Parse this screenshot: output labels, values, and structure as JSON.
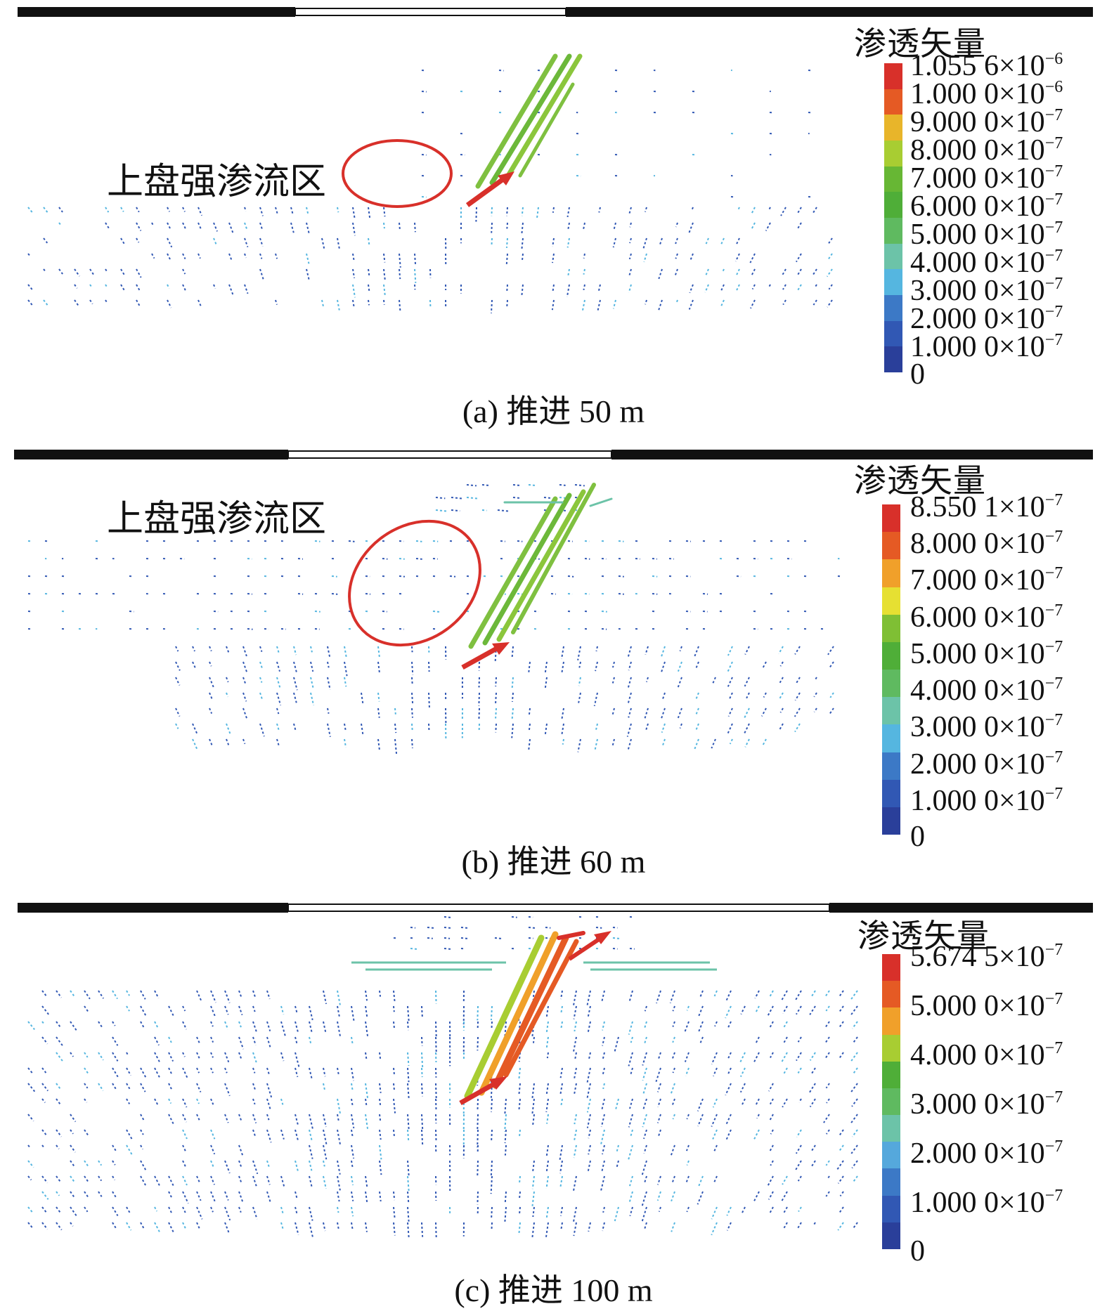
{
  "panels": [
    {
      "caption": "(a) 推进 50 m",
      "legend_title": "渗透矢量",
      "zone_label": "上盘强渗流区",
      "colors": [
        "#2a3f9a",
        "#3158b4",
        "#3c79c6",
        "#55b6e0",
        "#6cc3a8",
        "#5fba60",
        "#4fae38",
        "#67b734",
        "#a8cd32",
        "#e8b52a",
        "#e55a24",
        "#d8302a"
      ],
      "legend_labels": [
        {
          "mant": "1.055 6×10",
          "exp": "−6"
        },
        {
          "mant": "1.000 0×10",
          "exp": "−6"
        },
        {
          "mant": "9.000 0×10",
          "exp": "−7"
        },
        {
          "mant": "8.000 0×10",
          "exp": "−7"
        },
        {
          "mant": "7.000 0×10",
          "exp": "−7"
        },
        {
          "mant": "6.000 0×10",
          "exp": "−7"
        },
        {
          "mant": "5.000 0×10",
          "exp": "−7"
        },
        {
          "mant": "4.000 0×10",
          "exp": "−7"
        },
        {
          "mant": "3.000 0×10",
          "exp": "−7"
        },
        {
          "mant": "2.000 0×10",
          "exp": "−7"
        },
        {
          "mant": "1.000 0×10",
          "exp": "−7"
        },
        {
          "mant": "0",
          "exp": ""
        }
      ]
    },
    {
      "caption": "(b) 推进 60 m",
      "legend_title": "渗透矢量",
      "zone_label": "上盘强渗流区",
      "colors": [
        "#2a3f9a",
        "#3158b4",
        "#3c79c6",
        "#55b6e0",
        "#6cc3a8",
        "#5fba60",
        "#4fae38",
        "#7fbf34",
        "#e6e032",
        "#f0a02a",
        "#e55a24",
        "#d8302a"
      ],
      "legend_labels": [
        {
          "mant": "8.550 1×10",
          "exp": "−7"
        },
        {
          "mant": "8.000 0×10",
          "exp": "−7"
        },
        {
          "mant": "7.000 0×10",
          "exp": "−7"
        },
        {
          "mant": "6.000 0×10",
          "exp": "−7"
        },
        {
          "mant": "5.000 0×10",
          "exp": "−7"
        },
        {
          "mant": "4.000 0×10",
          "exp": "−7"
        },
        {
          "mant": "3.000 0×10",
          "exp": "−7"
        },
        {
          "mant": "2.000 0×10",
          "exp": "−7"
        },
        {
          "mant": "1.000 0×10",
          "exp": "−7"
        },
        {
          "mant": "0",
          "exp": ""
        }
      ]
    },
    {
      "caption": "(c) 推进 100 m",
      "legend_title": "渗透矢量",
      "zone_label": "",
      "colors": [
        "#2a3f9a",
        "#3158b4",
        "#3c79c6",
        "#55a8dc",
        "#6cc3a8",
        "#5fba60",
        "#4fae38",
        "#a8cd32",
        "#f0a02a",
        "#e55a24",
        "#d8302a"
      ],
      "legend_labels": [
        {
          "mant": "5.674 5×10",
          "exp": "−7"
        },
        {
          "mant": "5.000 0×10",
          "exp": "−7"
        },
        {
          "mant": "4.000 0×10",
          "exp": "−7"
        },
        {
          "mant": "3.000 0×10",
          "exp": "−7"
        },
        {
          "mant": "2.000 0×10",
          "exp": "−7"
        },
        {
          "mant": "1.000 0×10",
          "exp": "−7"
        },
        {
          "mant": "0",
          "exp": ""
        }
      ]
    }
  ]
}
